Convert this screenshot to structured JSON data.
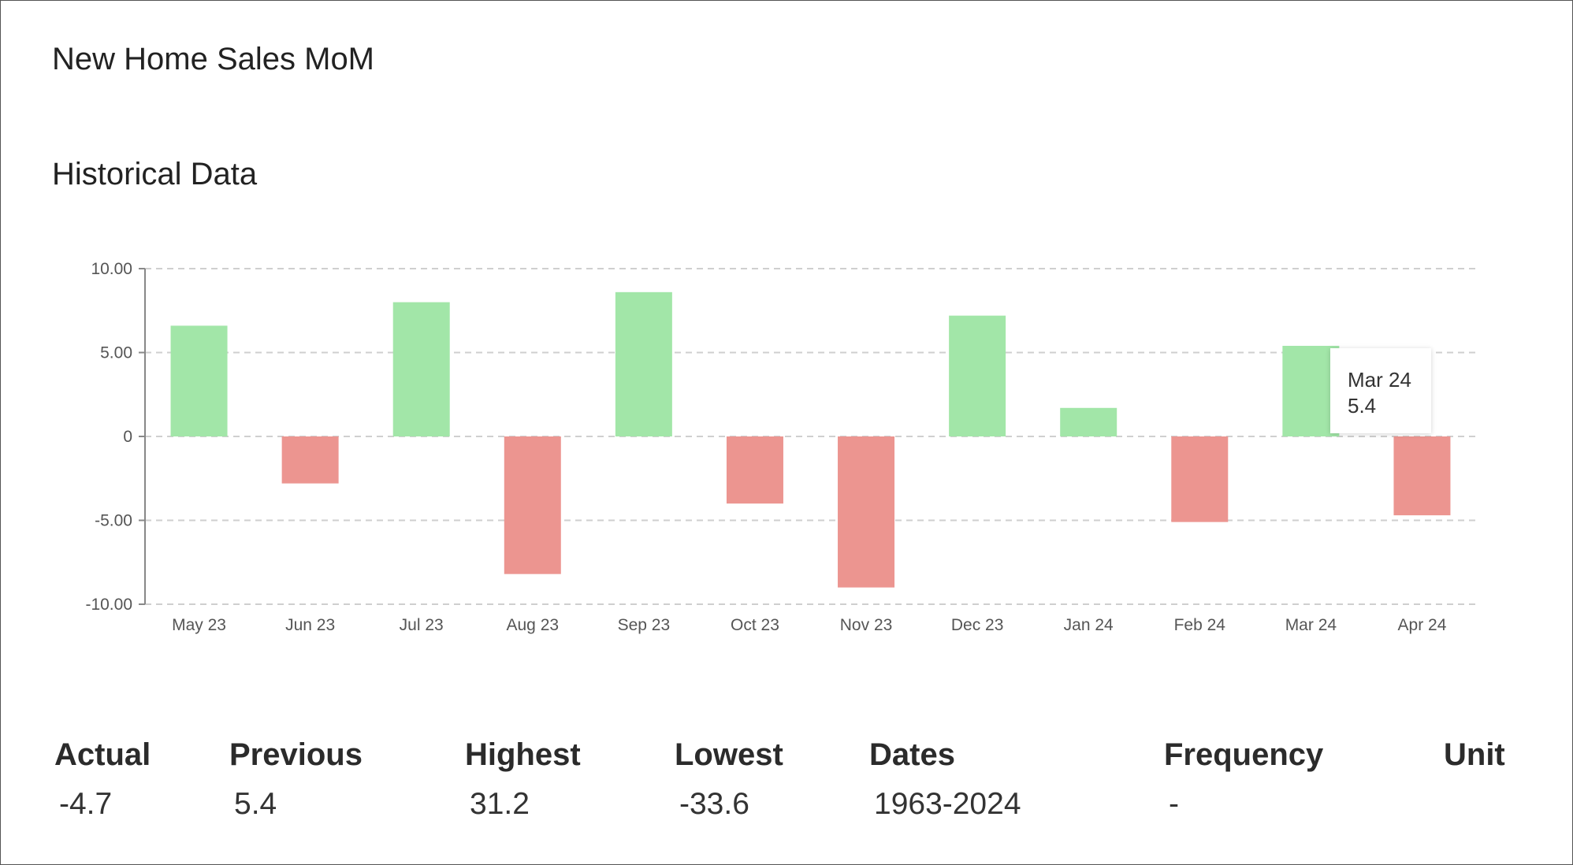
{
  "title": "New Home Sales MoM",
  "subtitle": "Historical Data",
  "colors": {
    "positive": "#a2e6a8",
    "negative": "#ec9590",
    "grid": "#cfcfcf",
    "axis": "#888888"
  },
  "chart_data": {
    "type": "bar",
    "categories": [
      "May 23",
      "Jun 23",
      "Jul 23",
      "Aug 23",
      "Sep 23",
      "Oct 23",
      "Nov 23",
      "Dec 23",
      "Jan 24",
      "Feb 24",
      "Mar 24",
      "Apr 24"
    ],
    "values": [
      6.6,
      -2.8,
      8.0,
      -8.2,
      8.6,
      -4.0,
      -9.0,
      7.2,
      1.7,
      -5.1,
      5.4,
      -4.7
    ],
    "ylim": [
      -10,
      10
    ],
    "yticks": [
      10,
      5,
      0,
      -5,
      -10
    ],
    "ytick_labels": [
      "10.00",
      "5.00",
      "0",
      "-5.00",
      "-10.00"
    ],
    "grid": true,
    "xlabel": "",
    "ylabel": ""
  },
  "tooltip": {
    "label": "Mar 24",
    "value": "5.4"
  },
  "stats": [
    {
      "label": "Actual",
      "value": "-4.7"
    },
    {
      "label": "Previous",
      "value": "5.4"
    },
    {
      "label": "Highest",
      "value": "31.2"
    },
    {
      "label": "Lowest",
      "value": "-33.6"
    },
    {
      "label": "Dates",
      "value": "1963-2024"
    },
    {
      "label": "Frequency",
      "value": "-"
    },
    {
      "label": "Unit",
      "value": ""
    }
  ]
}
